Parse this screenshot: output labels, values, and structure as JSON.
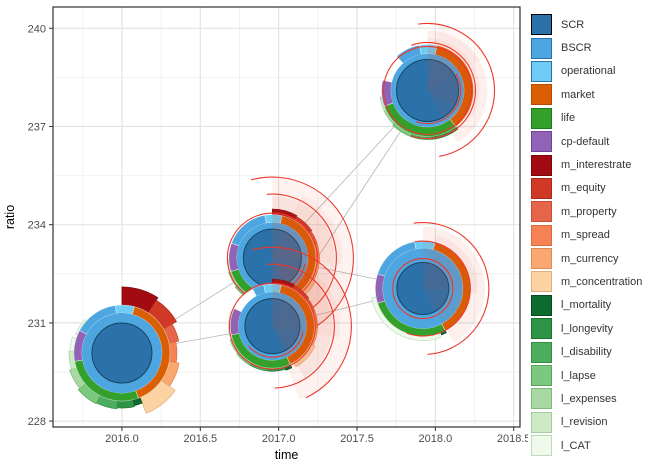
{
  "chart_data": {
    "type": "scatter",
    "glyph_type": "sunburst-donut",
    "title": "",
    "xlabel": "time",
    "ylabel": "ratio",
    "xlim": [
      2015.56,
      2018.54
    ],
    "ylim": [
      227.82,
      240.65
    ],
    "x_tick_values": [
      2016.0,
      2016.5,
      2017.0,
      2017.5,
      2018.0,
      2018.5
    ],
    "x_tick_labels": [
      "2016.0",
      "2016.5",
      "2017.0",
      "2017.5",
      "2018.0",
      "2018.5"
    ],
    "y_tick_values": [
      228,
      231,
      234,
      237,
      240
    ],
    "y_tick_labels": [
      "228",
      "231",
      "234",
      "237",
      "240"
    ],
    "grid": true,
    "legend_position": "right",
    "palette": {
      "SCR": "#2b72aa",
      "BSCR": "#4da6e0",
      "operational": "#6fcdf5",
      "market": "#d95f02",
      "life": "#33a02c",
      "cp-default": "#9163b6",
      "m_interestrate": "#a30b12",
      "m_equity": "#d03925",
      "m_property": "#e66549",
      "m_spread": "#f58154",
      "m_currency": "#f9a870",
      "m_concentration": "#fcd2a2",
      "l_mortality": "#0e6b2f",
      "l_longevity": "#2e9447",
      "l_disability": "#4dad5f",
      "l_lapse": "#7dc87f",
      "l_expenses": "#a8d9a2",
      "l_revision": "#cdeac6",
      "l_CAT": "#eff9ec",
      "white": "#ffffff"
    },
    "borders": {
      "SCR": "#000000",
      "BSCR": "#2b72aa",
      "operational": "#2b72aa",
      "market": "#b34c02",
      "life": "#1d7a1d",
      "cp-default": "#6a4591",
      "m_interestrate": "#7a060c",
      "m_equity": "#aa2a18",
      "m_property": "#c64e34",
      "m_spread": "#d96a3c",
      "m_currency": "#e08a50",
      "m_concentration": "#e2ae7c",
      "l_mortality": "#07481e",
      "l_longevity": "#20712f",
      "l_disability": "#348b42",
      "l_lapse": "#57a45c",
      "l_expenses": "#7fba7a",
      "l_revision": "#a3cf9e",
      "l_CAT": "#bfdcba",
      "white": "#cccccc"
    },
    "overlay_stroke": "#ed372b",
    "overlay_fill": "#e2492f",
    "link_color": "#b3b3b3",
    "legend": {
      "items": [
        {
          "label": "SCR",
          "key": "SCR"
        },
        {
          "label": "BSCR",
          "key": "BSCR"
        },
        {
          "label": "operational",
          "key": "operational"
        },
        {
          "label": "market",
          "key": "market"
        },
        {
          "label": "life",
          "key": "life"
        },
        {
          "label": "cp-default",
          "key": "cp-default"
        },
        {
          "label": "m_interestrate",
          "key": "m_interestrate"
        },
        {
          "label": "m_equity",
          "key": "m_equity"
        },
        {
          "label": "m_property",
          "key": "m_property"
        },
        {
          "label": "m_spread",
          "key": "m_spread"
        },
        {
          "label": "m_currency",
          "key": "m_currency"
        },
        {
          "label": "m_concentration",
          "key": "m_concentration"
        },
        {
          "label": "l_mortality",
          "key": "l_mortality"
        },
        {
          "label": "l_longevity",
          "key": "l_longevity"
        },
        {
          "label": "l_disability",
          "key": "l_disability"
        },
        {
          "label": "l_lapse",
          "key": "l_lapse"
        },
        {
          "label": "l_expenses",
          "key": "l_expenses"
        },
        {
          "label": "l_revision",
          "key": "l_revision"
        },
        {
          "label": "l_CAT",
          "key": "l_CAT"
        }
      ]
    },
    "points": [
      {
        "time": 2016.0,
        "ratio": 230.08
      },
      {
        "time": 2016.96,
        "ratio": 232.98
      },
      {
        "time": 2016.96,
        "ratio": 230.9
      },
      {
        "time": 2017.95,
        "ratio": 238.1
      },
      {
        "time": 2017.92,
        "ratio": 232.05
      }
    ],
    "links": [
      [
        0,
        1
      ],
      [
        0,
        2
      ],
      [
        1,
        3
      ],
      [
        2,
        3
      ],
      [
        1,
        4
      ],
      [
        2,
        4
      ]
    ],
    "glyphs": [
      {
        "point": 1,
        "r_scr": 29,
        "r_bscr": 35.5,
        "r_ring": 43.5,
        "ring3": [
          [
            "operational",
            350,
            373
          ],
          [
            "market",
            13,
            152
          ],
          [
            "life",
            152,
            252
          ],
          [
            "cp-default",
            252,
            290
          ],
          [
            "BSCR",
            290,
            350
          ]
        ],
        "detail": [
          [
            "m_interestrate",
            0,
            30,
            49
          ],
          [
            "m_equity",
            30,
            55,
            48
          ],
          [
            "m_property",
            55,
            72,
            47
          ],
          [
            "m_spread",
            72,
            95,
            47
          ],
          [
            "m_currency",
            95,
            118,
            47
          ],
          [
            "m_concentration",
            118,
            150,
            49
          ],
          [
            "l_longevity",
            152,
            185,
            46
          ],
          [
            "l_disability",
            185,
            210,
            46.5
          ],
          [
            "l_lapse",
            210,
            232,
            47
          ],
          [
            "l_expenses",
            232,
            252,
            46
          ],
          [
            "l_revision",
            252,
            268,
            45
          ]
        ],
        "overlay": [
          [
            0,
            165,
            80,
            0.07
          ],
          [
            0,
            150,
            62,
            0.09
          ],
          [
            25,
            95,
            70,
            0.05
          ]
        ],
        "arcs": [
          [
            33,
            100,
            210
          ],
          [
            45,
            0,
            360
          ],
          [
            64,
            -5,
            172
          ],
          [
            81,
            -15,
            150
          ]
        ]
      },
      {
        "point": 3,
        "r_scr": 31,
        "r_bscr": 36.5,
        "r_ring": 46,
        "ring3": [
          [
            "operational",
            350,
            372
          ],
          [
            "market",
            12,
            142
          ],
          [
            "life",
            142,
            250
          ],
          [
            "cp-default",
            250,
            283
          ],
          [
            "white",
            283,
            318
          ],
          [
            "BSCR",
            318,
            350
          ]
        ],
        "detail": [
          [
            "l_longevity",
            142,
            175,
            49
          ],
          [
            "l_disability",
            175,
            200,
            49
          ],
          [
            "l_lapse",
            200,
            225,
            49
          ],
          [
            "l_expenses",
            225,
            245,
            48
          ],
          [
            "l_revision",
            245,
            262,
            48
          ]
        ],
        "overlay": [
          [
            0,
            150,
            60,
            0.09
          ],
          [
            0,
            120,
            52,
            0.06
          ],
          [
            10,
            60,
            67,
            0.04
          ]
        ],
        "arcs": [
          [
            33,
            60,
            200
          ],
          [
            44,
            0,
            360
          ],
          [
            48,
            -20,
            200
          ],
          [
            67,
            -8,
            170
          ]
        ]
      },
      {
        "point": 4,
        "r_scr": 26,
        "r_bscr": 40,
        "r_ring": 47.5,
        "ring3": [
          [
            "operational",
            350,
            375
          ],
          [
            "market",
            15,
            152
          ],
          [
            "life",
            152,
            252
          ],
          [
            "cp-default",
            252,
            288
          ],
          [
            "BSCR",
            288,
            350
          ]
        ],
        "detail": [
          [
            "l_mortality",
            152,
            158,
            50
          ],
          [
            "l_CAT",
            160,
            260,
            52
          ]
        ],
        "overlay": [
          [
            0,
            150,
            62,
            0.09
          ],
          [
            15,
            95,
            55,
            0.06
          ]
        ],
        "arcs": [
          [
            30,
            0,
            360
          ],
          [
            47.5,
            -10,
            200
          ],
          [
            66,
            -8,
            176
          ]
        ]
      },
      {
        "point": 2,
        "r_scr": 27.5,
        "r_bscr": 34,
        "r_ring": 42,
        "ring3": [
          [
            "operational",
            348,
            372
          ],
          [
            "market",
            12,
            155
          ],
          [
            "life",
            155,
            258
          ],
          [
            "cp-default",
            258,
            295
          ],
          [
            "white",
            295,
            332
          ],
          [
            "BSCR",
            332,
            348
          ]
        ],
        "detail": [
          [
            "m_interestrate",
            0,
            28,
            47
          ],
          [
            "m_equity",
            28,
            52,
            46
          ],
          [
            "m_property",
            52,
            70,
            45
          ],
          [
            "m_spread",
            70,
            92,
            45
          ],
          [
            "m_currency",
            92,
            115,
            45
          ],
          [
            "m_concentration",
            115,
            150,
            47
          ],
          [
            "l_mortality",
            155,
            163,
            46
          ],
          [
            "l_longevity",
            163,
            185,
            45
          ],
          [
            "l_disability",
            185,
            210,
            45
          ],
          [
            "l_lapse",
            210,
            232,
            45
          ],
          [
            "l_expenses",
            232,
            252,
            44.5
          ],
          [
            "l_CAT",
            258,
            290,
            44
          ]
        ],
        "overlay": [
          [
            0,
            160,
            78,
            0.07
          ],
          [
            0,
            148,
            60,
            0.09
          ],
          [
            30,
            100,
            68,
            0.05
          ]
        ],
        "arcs": [
          [
            31,
            100,
            230
          ],
          [
            43,
            0,
            360
          ],
          [
            62,
            -5,
            178
          ],
          [
            79,
            -15,
            155
          ]
        ]
      },
      {
        "point": 0,
        "r_scr": 30,
        "r_bscr": 40,
        "r_ring": 48,
        "ring3": [
          [
            "operational",
            352,
            375
          ],
          [
            "market",
            15,
            160
          ],
          [
            "life",
            160,
            260
          ],
          [
            "cp-default",
            260,
            298
          ],
          [
            "BSCR",
            298,
            352
          ]
        ],
        "detail": [
          [
            "m_interestrate",
            0,
            33,
            66
          ],
          [
            "m_equity",
            33,
            60,
            63
          ],
          [
            "m_property",
            60,
            78,
            58
          ],
          [
            "m_spread",
            78,
            100,
            55
          ],
          [
            "m_currency",
            100,
            125,
            58
          ],
          [
            "m_concentration",
            125,
            158,
            65
          ],
          [
            "l_mortality",
            158,
            167,
            54
          ],
          [
            "l_longevity",
            167,
            185,
            55
          ],
          [
            "l_disability",
            185,
            207,
            56
          ],
          [
            "l_lapse",
            207,
            230,
            57
          ],
          [
            "l_expenses",
            230,
            252,
            55
          ],
          [
            "l_revision",
            252,
            272,
            53
          ],
          [
            "l_CAT",
            272,
            288,
            52
          ],
          [
            "l_CAT",
            292,
            312,
            50
          ]
        ],
        "overlay": [],
        "arcs": []
      }
    ]
  }
}
